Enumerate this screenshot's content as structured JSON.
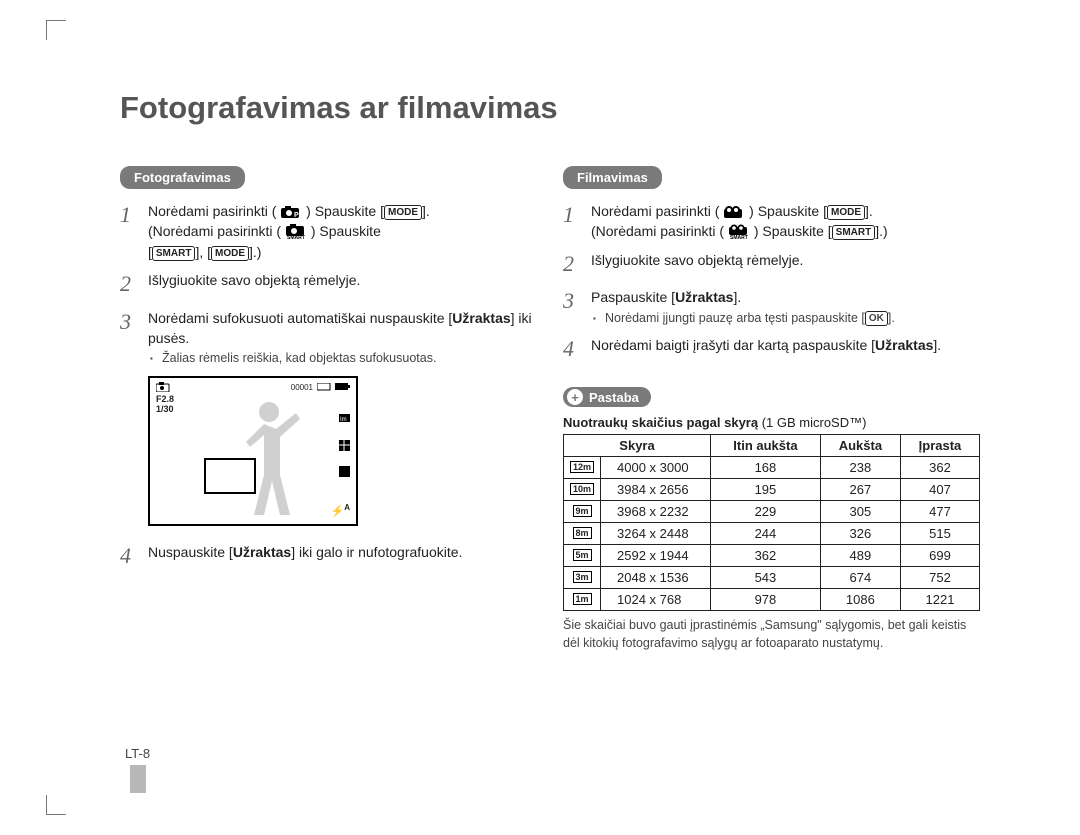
{
  "title": "Fotografavimas ar filmavimas",
  "left": {
    "heading": "Fotografavimas",
    "steps": {
      "s1": {
        "pre": "Norėdami pasirinkti (",
        "mid": ") Spauskite [",
        "btn1": "MODE",
        "after1": "].",
        "line2_pre": "(Norėdami pasirinkti (",
        "line2_mid": ") Spauskite",
        "line3_open": "[",
        "btn2": "SMART",
        "sep": "], [",
        "btn3": "MODE",
        "close": "].)"
      },
      "s2": "Išlygiuokite savo objektą rėmelyje.",
      "s3_a": "Norėdami sufokusuoti automatiškai nuspauskite [",
      "s3_b": "Užraktas",
      "s3_c": "] iki pusės.",
      "s3_sub": "Žalias rėmelis reiškia, kad objektas sufokusuotas.",
      "s4_a": "Nuspauskite [",
      "s4_b": "Užraktas",
      "s4_c": "] iki galo ir nufotografuokite."
    },
    "lcd": {
      "counter": "00001",
      "f": "F2.8",
      "s": "1/30",
      "flash": "A"
    }
  },
  "right": {
    "heading": "Filmavimas",
    "steps": {
      "s1_pre": "Norėdami pasirinkti (",
      "s1_mid": ") Spauskite [",
      "s1_btn1": "MODE",
      "s1_after": "].",
      "s1_l2_pre": "(Norėdami pasirinkti (",
      "s1_l2_mid": ") Spauskite [",
      "s1_btn2": "SMART",
      "s1_close": "].)",
      "s2": "Išlygiuokite savo objektą rėmelyje.",
      "s3_a": "Paspauskite [",
      "s3_b": "Užraktas",
      "s3_c": "].",
      "s3_sub_a": "Norėdami įjungti pauzę arba tęsti paspauskite [",
      "s3_sub_btn": "OK",
      "s3_sub_b": "].",
      "s4_a": "Norėdami baigti įrašyti dar kartą paspauskite [",
      "s4_b": "Užraktas",
      "s4_c": "]."
    },
    "note_label": "Pastaba",
    "table_title_a": "Nuotraukų skaičius pagal skyrą",
    "table_title_b": " (1 GB microSD™)",
    "cols": {
      "c1": "Skyra",
      "c2": "Itin aukšta",
      "c3": "Aukšta",
      "c4": "Įprasta"
    },
    "rows": [
      {
        "icon": "12m",
        "res": "4000 x 3000",
        "a": "168",
        "b": "238",
        "c": "362"
      },
      {
        "icon": "10m",
        "res": "3984 x 2656",
        "a": "195",
        "b": "267",
        "c": "407"
      },
      {
        "icon": "9m",
        "res": "3968 x 2232",
        "a": "229",
        "b": "305",
        "c": "477"
      },
      {
        "icon": "8m",
        "res": "3264 x 2448",
        "a": "244",
        "b": "326",
        "c": "515"
      },
      {
        "icon": "5m",
        "res": "2592 x 1944",
        "a": "362",
        "b": "489",
        "c": "699"
      },
      {
        "icon": "3m",
        "res": "2048 x 1536",
        "a": "543",
        "b": "674",
        "c": "752"
      },
      {
        "icon": "1m",
        "res": "1024 x 768",
        "a": "978",
        "b": "1086",
        "c": "1221"
      }
    ],
    "footnote": "Šie skaičiai buvo gauti įprastinėmis „Samsung\" sąlygomis, bet gali keistis dėl kitokių fotografavimo sąlygų ar fotoaparato nustatymų."
  },
  "page_num": "LT-8"
}
